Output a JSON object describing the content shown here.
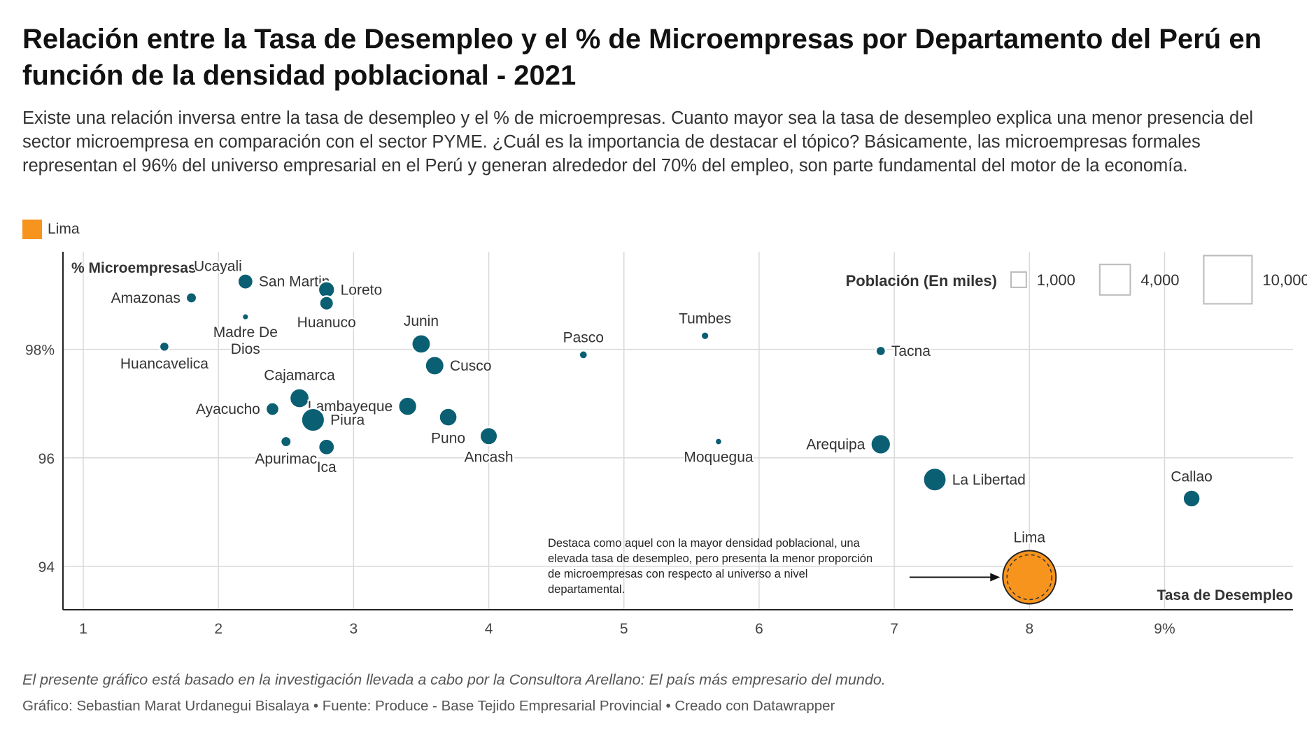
{
  "header": {
    "title": "Relación entre la Tasa de Desempleo y el % de Microempresas por Departamento del Perú en función de la densidad poblacional - 2021",
    "subtitle": "Existe una relación inversa entre la tasa de desempleo y el % de microempresas. Cuanto mayor sea la tasa de desempleo explica una menor presencia del sector microempresa en comparación con el sector PYME. ¿Cuál es la importancia de destacar el tópico? Básicamente, las microempresas formales representan el 96% del universo empresarial en el Perú y generan alrededor del 70% del empleo, son parte fundamental del motor de la economía."
  },
  "legend": {
    "label": "Lima",
    "color": "#f7941d"
  },
  "size_legend": {
    "title": "Población (En miles)",
    "items": [
      {
        "label": "1,000",
        "value": 1000
      },
      {
        "label": "4,000",
        "value": 4000
      },
      {
        "label": "10,000",
        "value": 10000
      }
    ]
  },
  "colors": {
    "default": "#0b5f73",
    "highlight": "#f7941d",
    "grid": "#d9d9d9"
  },
  "chart_data": {
    "type": "scatter",
    "xlabel": "Tasa de Desempleo",
    "ylabel": "% Microempresas",
    "xlim": [
      0.85,
      9.95
    ],
    "ylim": [
      93.2,
      99.8
    ],
    "x_ticks": [
      {
        "value": 1,
        "label": "1"
      },
      {
        "value": 2,
        "label": "2"
      },
      {
        "value": 3,
        "label": "3"
      },
      {
        "value": 4,
        "label": "4"
      },
      {
        "value": 5,
        "label": "5"
      },
      {
        "value": 6,
        "label": "6"
      },
      {
        "value": 7,
        "label": "7"
      },
      {
        "value": 8,
        "label": "8"
      },
      {
        "value": 9,
        "label": "9%"
      }
    ],
    "y_ticks": [
      {
        "value": 94,
        "label": "94"
      },
      {
        "value": 96,
        "label": "96"
      },
      {
        "value": 98,
        "label": "98%"
      }
    ],
    "grid": true,
    "size_variable": "Población (En miles)",
    "points": [
      {
        "name": "Ucayali",
        "x": 2.2,
        "y": 99.25,
        "size": 590,
        "label_pos": "top-left"
      },
      {
        "name": "San Martin",
        "x": 2.2,
        "y": 99.25,
        "size": 900,
        "label_pos": "right"
      },
      {
        "name": "Amazonas",
        "x": 1.8,
        "y": 98.95,
        "size": 430,
        "label_pos": "left"
      },
      {
        "name": "Loreto",
        "x": 2.8,
        "y": 99.1,
        "size": 1030,
        "label_pos": "right"
      },
      {
        "name": "Huanuco",
        "x": 2.8,
        "y": 98.85,
        "size": 760,
        "label_pos": "bottom"
      },
      {
        "name": "Madre De\nDios",
        "x": 2.2,
        "y": 98.6,
        "size": 170,
        "label_pos": "bottom"
      },
      {
        "name": "Huancavelica",
        "x": 1.6,
        "y": 98.05,
        "size": 360,
        "label_pos": "bottom"
      },
      {
        "name": "Junin",
        "x": 3.5,
        "y": 98.1,
        "size": 1360,
        "label_pos": "top"
      },
      {
        "name": "Cusco",
        "x": 3.6,
        "y": 97.7,
        "size": 1360,
        "label_pos": "right"
      },
      {
        "name": "Pasco",
        "x": 4.7,
        "y": 97.9,
        "size": 270,
        "label_pos": "top"
      },
      {
        "name": "Tumbes",
        "x": 5.6,
        "y": 98.25,
        "size": 250,
        "label_pos": "top"
      },
      {
        "name": "Tacna",
        "x": 6.9,
        "y": 97.97,
        "size": 370,
        "label_pos": "right"
      },
      {
        "name": "Cajamarca",
        "x": 2.6,
        "y": 97.1,
        "size": 1450,
        "label_pos": "top"
      },
      {
        "name": "Ayacucho",
        "x": 2.4,
        "y": 96.9,
        "size": 670,
        "label_pos": "left"
      },
      {
        "name": "Lambayeque",
        "x": 3.4,
        "y": 96.95,
        "size": 1310,
        "label_pos": "left"
      },
      {
        "name": "Piura",
        "x": 2.7,
        "y": 96.7,
        "size": 2050,
        "label_pos": "right"
      },
      {
        "name": "Puno",
        "x": 3.7,
        "y": 96.75,
        "size": 1240,
        "label_pos": "bottom"
      },
      {
        "name": "Ancash",
        "x": 4.0,
        "y": 96.4,
        "size": 1180,
        "label_pos": "bottom"
      },
      {
        "name": "Apurimac",
        "x": 2.5,
        "y": 96.3,
        "size": 430,
        "label_pos": "bottom"
      },
      {
        "name": "Ica",
        "x": 2.8,
        "y": 96.2,
        "size": 980,
        "label_pos": "bottom"
      },
      {
        "name": "Moquegua",
        "x": 5.7,
        "y": 96.3,
        "size": 190,
        "label_pos": "bottom"
      },
      {
        "name": "Arequipa",
        "x": 6.9,
        "y": 96.25,
        "size": 1500,
        "label_pos": "left"
      },
      {
        "name": "La Libertad",
        "x": 7.3,
        "y": 95.6,
        "size": 2020,
        "label_pos": "right"
      },
      {
        "name": "Callao",
        "x": 9.2,
        "y": 95.25,
        "size": 1130,
        "label_pos": "top"
      },
      {
        "name": "Lima",
        "x": 8.0,
        "y": 93.8,
        "size": 10500,
        "label_pos": "top",
        "highlight": true
      }
    ],
    "annotation": {
      "text": "Destaca como aquel con la mayor densidad poblacional, una elevada tasa de desempleo, pero presenta la menor proporción de microempresas con respecto al universo a nivel departamental.",
      "lines": [
        "Destaca como aquel con la mayor densidad poblacional, una",
        "elevada tasa de desempleo, pero presenta la menor proporción",
        "de microempresas con respecto al universo a nivel",
        "departamental."
      ],
      "target": "Lima"
    }
  },
  "footer": {
    "note": "El presente gráfico está basado en la investigación llevada a cabo por la Consultora Arellano: El país más empresario del mundo.",
    "credits": "Gráfico: Sebastian Marat Urdanegui Bisalaya • Fuente: Produce - Base Tejido Empresarial Provincial • Creado con Datawrapper"
  }
}
